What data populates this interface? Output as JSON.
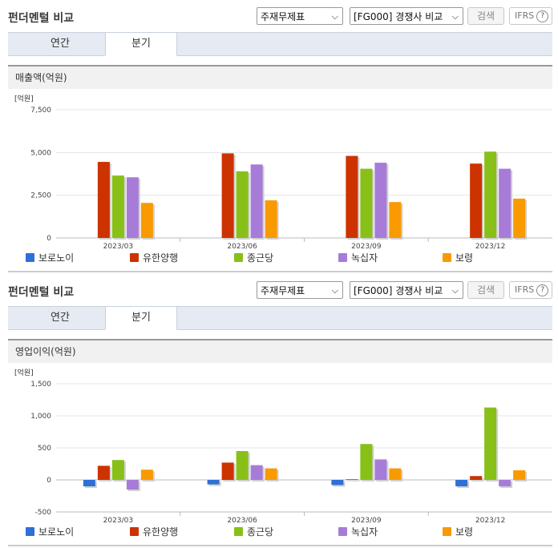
{
  "sections": [
    {
      "title": "펀더멘털 비교",
      "select1": "주재무제표",
      "select2": "[FG000] 경쟁사 비교",
      "search_label": "검색",
      "ifrs_label": "IFRS",
      "tabs": [
        "연간",
        "분기"
      ],
      "active_tab": 1,
      "header": "매출액(억원)"
    },
    {
      "title": "펀더멘털 비교",
      "select1": "주재무제표",
      "select2": "[FG000] 경쟁사 비교",
      "search_label": "검색",
      "ifrs_label": "IFRS",
      "tabs": [
        "연간",
        "분기"
      ],
      "active_tab": 1,
      "header": "영업이익(억원)"
    }
  ],
  "chart_data": [
    {
      "type": "bar",
      "ylabel": "[억원]",
      "categories": [
        "2023/03",
        "2023/06",
        "2023/09",
        "2023/12"
      ],
      "ylim": [
        0,
        7500
      ],
      "yticks": [
        0,
        2500,
        5000,
        7500
      ],
      "ytick_labels": [
        "0",
        "2,500",
        "5,000",
        "7,500"
      ],
      "grid": true,
      "legend": "bottom",
      "series": [
        {
          "name": "보로노이",
          "color": "#2f6fd6",
          "values": [
            0,
            0,
            0,
            0
          ]
        },
        {
          "name": "유한양행",
          "color": "#cc3300",
          "values": [
            4450,
            4950,
            4800,
            4350
          ]
        },
        {
          "name": "종근당",
          "color": "#88c018",
          "values": [
            3650,
            3900,
            4050,
            5050
          ]
        },
        {
          "name": "녹십자",
          "color": "#a77cd8",
          "values": [
            3550,
            4300,
            4400,
            4050
          ]
        },
        {
          "name": "보령",
          "color": "#f89a00",
          "values": [
            2050,
            2200,
            2100,
            2300
          ]
        }
      ]
    },
    {
      "type": "bar",
      "ylabel": "[억원]",
      "categories": [
        "2023/03",
        "2023/06",
        "2023/09",
        "2023/12"
      ],
      "ylim": [
        -500,
        1500
      ],
      "yticks": [
        -500,
        0,
        500,
        1000,
        1500
      ],
      "ytick_labels": [
        "-500",
        "0",
        "500",
        "1,000",
        "1,500"
      ],
      "grid": true,
      "legend": "bottom",
      "series": [
        {
          "name": "보로노이",
          "color": "#2f6fd6",
          "values": [
            -100,
            -70,
            -80,
            -100
          ]
        },
        {
          "name": "유한양행",
          "color": "#cc3300",
          "values": [
            220,
            270,
            10,
            60
          ]
        },
        {
          "name": "종근당",
          "color": "#88c018",
          "values": [
            310,
            450,
            560,
            1130
          ]
        },
        {
          "name": "녹십자",
          "color": "#a77cd8",
          "values": [
            -150,
            230,
            320,
            -100
          ]
        },
        {
          "name": "보령",
          "color": "#f89a00",
          "values": [
            160,
            180,
            180,
            150
          ]
        }
      ]
    }
  ]
}
